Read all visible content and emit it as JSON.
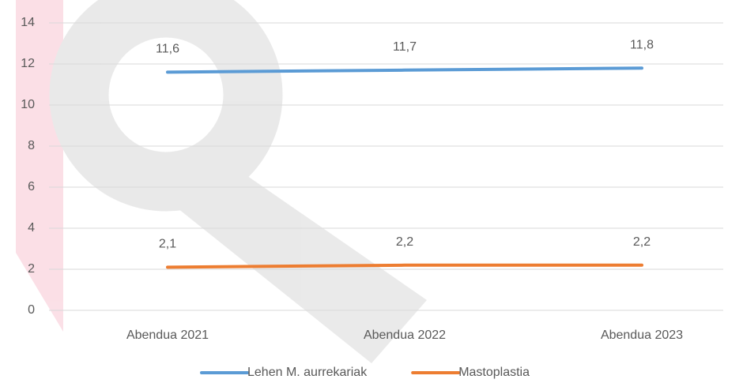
{
  "chart_data": {
    "type": "line",
    "categories": [
      "Abendua 2021",
      "Abendua 2022",
      "Abendua 2023"
    ],
    "series": [
      {
        "name": "Lehen M. aurrekariak",
        "color": "#5b9bd5",
        "values": [
          11.6,
          11.7,
          11.8
        ],
        "value_labels": [
          "11,6",
          "11,7",
          "11,8"
        ]
      },
      {
        "name": "Mastoplastia",
        "color": "#ed7d31",
        "values": [
          2.1,
          2.2,
          2.2
        ],
        "value_labels": [
          "2,1",
          "2,2",
          "2,2"
        ]
      }
    ],
    "ylim": [
      0,
      14
    ],
    "yticks": [
      0,
      2,
      4,
      6,
      8,
      10,
      12,
      14
    ],
    "grid": true,
    "legend": "bottom"
  }
}
